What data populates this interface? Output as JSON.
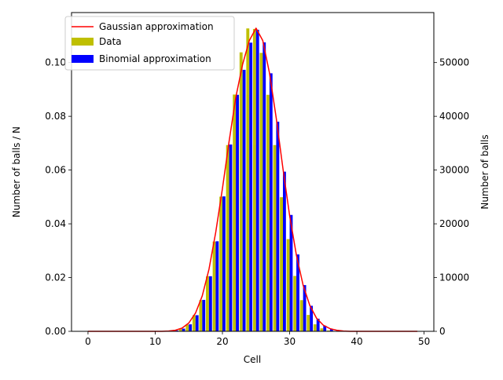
{
  "chart_data": {
    "type": "bar",
    "xlabel": "Cell",
    "ylabel_left": "Number of balls / N",
    "ylabel_right": "Number of balls",
    "xlim": [
      -2.45,
      51.45
    ],
    "ylim_left": [
      0,
      0.1186
    ],
    "ylim_right": [
      0,
      59300
    ],
    "x_ticks": [
      0,
      10,
      20,
      30,
      40,
      50
    ],
    "y_left_ticks": [
      "0.00",
      "0.02",
      "0.04",
      "0.06",
      "0.08",
      "0.10"
    ],
    "y_right_ticks": [
      "0",
      "10000",
      "20000",
      "30000",
      "40000",
      "50000"
    ],
    "grid": false,
    "legend_position": "top-left",
    "legend": [
      {
        "label": "Gaussian approximation",
        "kind": "line",
        "color": "#ff0000"
      },
      {
        "label": "Data",
        "kind": "patch",
        "color": "#bfbf00"
      },
      {
        "label": "Binomial approximation",
        "kind": "patch",
        "color": "#0000ff"
      }
    ],
    "cells": [
      0,
      1,
      2,
      3,
      4,
      5,
      6,
      7,
      8,
      9,
      10,
      11,
      12,
      13,
      14,
      15,
      16,
      17,
      18,
      19,
      20,
      21,
      22,
      23,
      24,
      25,
      26,
      27,
      28,
      29,
      30,
      31,
      32,
      33,
      34,
      35,
      36,
      37,
      38,
      39,
      40,
      41,
      42,
      43,
      44,
      45,
      46,
      47,
      48,
      49
    ],
    "series": [
      {
        "name": "Data",
        "color": "#bfbf00",
        "values": [
          0,
          0,
          0,
          0,
          0,
          0,
          0,
          0,
          0,
          0,
          0,
          0,
          0,
          0.0002,
          0.0009,
          0.0025,
          0.006,
          0.0116,
          0.0205,
          0.0334,
          0.0501,
          0.0693,
          0.0881,
          0.1038,
          0.1127,
          0.1125,
          0.1036,
          0.088,
          0.0693,
          0.0499,
          0.0343,
          0.0206,
          0.0116,
          0.0061,
          0.0026,
          0.0011,
          0.0003,
          0.0001,
          0,
          0,
          0,
          0,
          0,
          0,
          0,
          0,
          0,
          0,
          0,
          0
        ]
      },
      {
        "name": "Binomial approximation",
        "color": "#0000ff",
        "values": [
          0,
          0,
          0,
          0,
          0,
          0,
          0,
          0,
          0,
          0,
          0,
          0,
          0,
          0.0003,
          0.001,
          0.0026,
          0.006,
          0.0117,
          0.0205,
          0.0335,
          0.0502,
          0.0695,
          0.088,
          0.0973,
          0.1074,
          0.1122,
          0.1075,
          0.096,
          0.078,
          0.0594,
          0.0433,
          0.0286,
          0.0172,
          0.0095,
          0.0047,
          0.0021,
          0.0008,
          0.0003,
          0,
          0,
          0,
          0,
          0,
          0,
          0,
          0,
          0,
          0,
          0,
          0
        ]
      },
      {
        "name": "Gaussian approximation",
        "kind": "line",
        "color": "#ff0000",
        "values": [
          0,
          0,
          0,
          0,
          0,
          0,
          0,
          0,
          0,
          0,
          0,
          0,
          0.0001,
          0.0004,
          0.0012,
          0.0031,
          0.0068,
          0.0132,
          0.0231,
          0.0368,
          0.0531,
          0.0708,
          0.0872,
          0.0993,
          0.1082,
          0.1128,
          0.1082,
          0.0961,
          0.0794,
          0.0606,
          0.043,
          0.0284,
          0.0172,
          0.0096,
          0.0049,
          0.0023,
          0.001,
          0.0004,
          0.0001,
          0,
          0,
          0,
          0,
          0,
          0,
          0,
          0,
          0,
          0,
          0
        ]
      }
    ]
  }
}
